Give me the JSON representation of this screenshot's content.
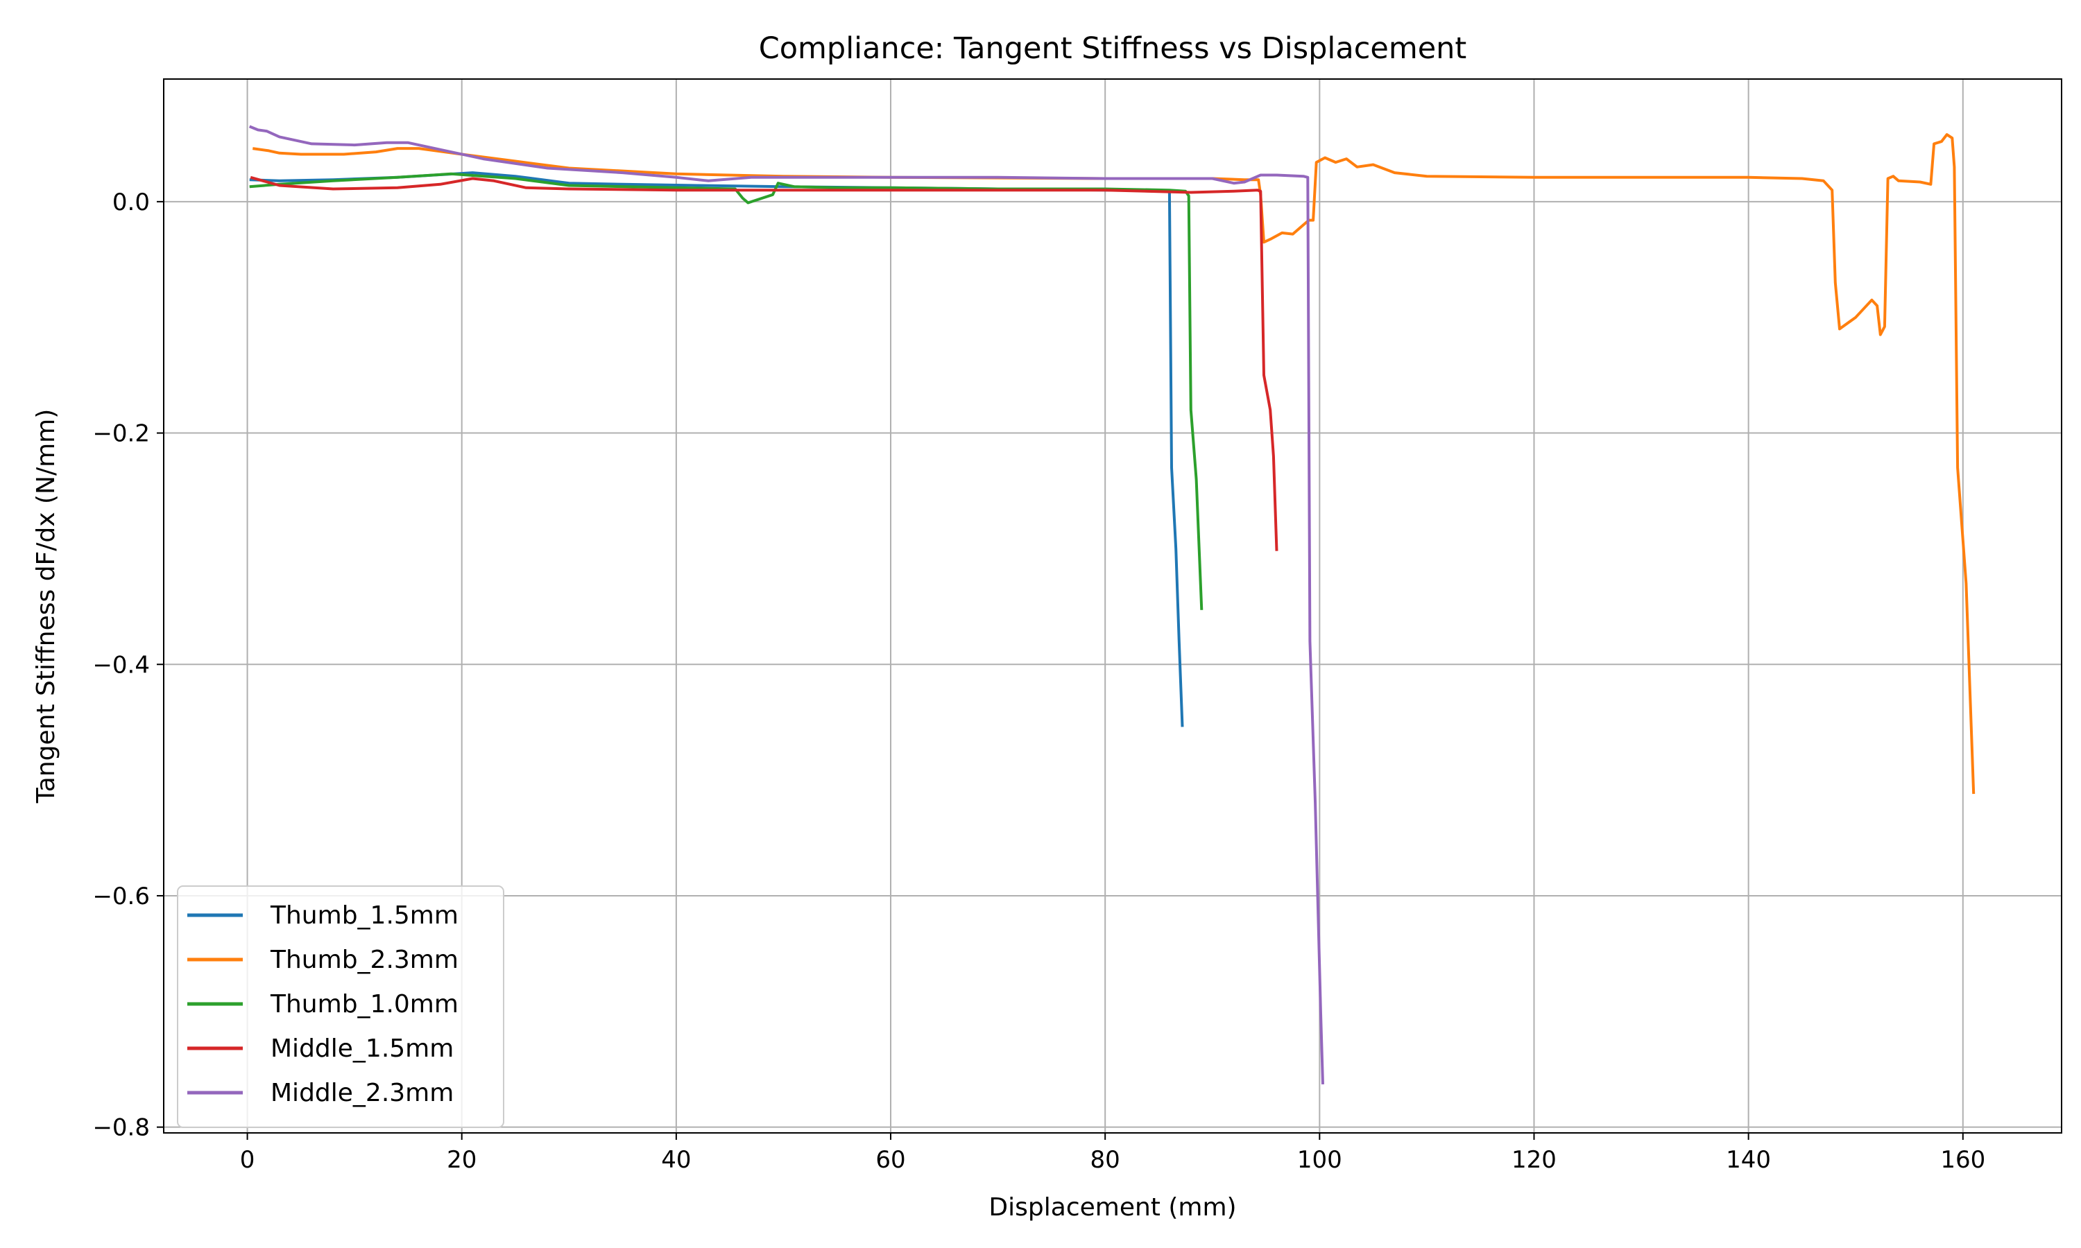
{
  "chart_data": {
    "type": "line",
    "title": "Compliance: Tangent Stiffness vs Displacement",
    "xlabel": "Displacement (mm)",
    "ylabel": "Tangent Stiffness dF/dx (N/mm)",
    "xlim": [
      -7.8,
      169.2
    ],
    "ylim": [
      -0.805,
      0.106
    ],
    "xticks": [
      0,
      20,
      40,
      60,
      80,
      100,
      120,
      140,
      160
    ],
    "xtick_labels": [
      "0",
      "20",
      "40",
      "60",
      "80",
      "100",
      "120",
      "140",
      "160"
    ],
    "yticks": [
      0.0,
      -0.2,
      -0.4,
      -0.6,
      -0.8
    ],
    "ytick_labels": [
      "0.0",
      "−0.2",
      "−0.4",
      "−0.6",
      "−0.8"
    ],
    "grid": true,
    "legend_position": "lower-left",
    "series": [
      {
        "name": "Thumb_1.5mm",
        "color": "#1f77b4",
        "points": [
          [
            0.2,
            0.019
          ],
          [
            3,
            0.018
          ],
          [
            8,
            0.019
          ],
          [
            14,
            0.021
          ],
          [
            21,
            0.025
          ],
          [
            25,
            0.022
          ],
          [
            30,
            0.016
          ],
          [
            35,
            0.015
          ],
          [
            42,
            0.014
          ],
          [
            50,
            0.013
          ],
          [
            60,
            0.012
          ],
          [
            70,
            0.011
          ],
          [
            80,
            0.01
          ],
          [
            85,
            0.01
          ],
          [
            86,
            0.009
          ],
          [
            86.2,
            -0.23
          ],
          [
            86.6,
            -0.3
          ],
          [
            86.9,
            -0.38
          ],
          [
            87.2,
            -0.454
          ]
        ]
      },
      {
        "name": "Thumb_2.3mm",
        "color": "#ff7f0e",
        "points": [
          [
            0.5,
            0.046
          ],
          [
            2,
            0.044
          ],
          [
            3,
            0.042
          ],
          [
            5,
            0.041
          ],
          [
            9,
            0.041
          ],
          [
            12,
            0.043
          ],
          [
            14,
            0.046
          ],
          [
            16,
            0.046
          ],
          [
            20,
            0.041
          ],
          [
            25,
            0.035
          ],
          [
            30,
            0.029
          ],
          [
            40,
            0.024
          ],
          [
            50,
            0.022
          ],
          [
            60,
            0.021
          ],
          [
            80,
            0.02
          ],
          [
            90,
            0.02
          ],
          [
            93,
            0.019
          ],
          [
            94.3,
            0.019
          ],
          [
            94.5,
            0.006
          ],
          [
            94.8,
            -0.035
          ],
          [
            95.5,
            -0.032
          ],
          [
            96.5,
            -0.027
          ],
          [
            97.5,
            -0.028
          ],
          [
            98.5,
            -0.02
          ],
          [
            99,
            -0.016
          ],
          [
            99.4,
            -0.016
          ],
          [
            99.7,
            0.034
          ],
          [
            100.5,
            0.038
          ],
          [
            101.5,
            0.034
          ],
          [
            102.5,
            0.037
          ],
          [
            103.5,
            0.03
          ],
          [
            105,
            0.032
          ],
          [
            107,
            0.025
          ],
          [
            110,
            0.022
          ],
          [
            120,
            0.021
          ],
          [
            130,
            0.021
          ],
          [
            140,
            0.021
          ],
          [
            145,
            0.02
          ],
          [
            147,
            0.018
          ],
          [
            147.8,
            0.01
          ],
          [
            148.1,
            -0.07
          ],
          [
            148.5,
            -0.11
          ],
          [
            150,
            -0.1
          ],
          [
            151.5,
            -0.085
          ],
          [
            152,
            -0.09
          ],
          [
            152.3,
            -0.115
          ],
          [
            152.7,
            -0.108
          ],
          [
            153,
            0.02
          ],
          [
            153.5,
            0.022
          ],
          [
            154,
            0.018
          ],
          [
            156,
            0.017
          ],
          [
            157,
            0.015
          ],
          [
            157.3,
            0.05
          ],
          [
            158,
            0.052
          ],
          [
            158.5,
            0.058
          ],
          [
            159,
            0.055
          ],
          [
            159.2,
            0.03
          ],
          [
            159.5,
            -0.23
          ],
          [
            160.3,
            -0.33
          ],
          [
            161,
            -0.512
          ]
        ]
      },
      {
        "name": "Thumb_1.0mm",
        "color": "#2ca02c",
        "points": [
          [
            0.2,
            0.013
          ],
          [
            3,
            0.015
          ],
          [
            8,
            0.018
          ],
          [
            14,
            0.021
          ],
          [
            19,
            0.024
          ],
          [
            25,
            0.02
          ],
          [
            30,
            0.014
          ],
          [
            40,
            0.012
          ],
          [
            45.5,
            0.011
          ],
          [
            46.2,
            0.003
          ],
          [
            46.7,
            -0.001
          ],
          [
            48,
            0.003
          ],
          [
            49,
            0.006
          ],
          [
            49.5,
            0.016
          ],
          [
            51,
            0.013
          ],
          [
            55,
            0.012
          ],
          [
            60,
            0.012
          ],
          [
            70,
            0.011
          ],
          [
            80,
            0.011
          ],
          [
            86,
            0.01
          ],
          [
            87.5,
            0.009
          ],
          [
            87.8,
            0.005
          ],
          [
            88,
            -0.18
          ],
          [
            88.5,
            -0.24
          ],
          [
            89,
            -0.353
          ]
        ]
      },
      {
        "name": "Middle_1.5mm",
        "color": "#d62728",
        "points": [
          [
            0.3,
            0.021
          ],
          [
            3,
            0.014
          ],
          [
            8,
            0.011
          ],
          [
            14,
            0.012
          ],
          [
            18,
            0.015
          ],
          [
            21,
            0.02
          ],
          [
            23,
            0.018
          ],
          [
            26,
            0.012
          ],
          [
            30,
            0.011
          ],
          [
            40,
            0.01
          ],
          [
            60,
            0.01
          ],
          [
            70,
            0.01
          ],
          [
            80,
            0.01
          ],
          [
            88,
            0.008
          ],
          [
            92,
            0.009
          ],
          [
            94.2,
            0.01
          ],
          [
            94.5,
            0.009
          ],
          [
            94.8,
            -0.15
          ],
          [
            95.4,
            -0.18
          ],
          [
            95.7,
            -0.22
          ],
          [
            96,
            -0.302
          ]
        ]
      },
      {
        "name": "Middle_2.3mm",
        "color": "#9467bd",
        "points": [
          [
            0.2,
            0.065
          ],
          [
            1,
            0.062
          ],
          [
            1.8,
            0.061
          ],
          [
            3,
            0.056
          ],
          [
            6,
            0.05
          ],
          [
            10,
            0.049
          ],
          [
            13,
            0.051
          ],
          [
            15,
            0.051
          ],
          [
            18,
            0.045
          ],
          [
            22,
            0.037
          ],
          [
            28,
            0.029
          ],
          [
            35,
            0.025
          ],
          [
            40,
            0.021
          ],
          [
            43,
            0.018
          ],
          [
            47,
            0.021
          ],
          [
            55,
            0.021
          ],
          [
            70,
            0.021
          ],
          [
            80,
            0.02
          ],
          [
            88,
            0.02
          ],
          [
            90,
            0.02
          ],
          [
            92,
            0.016
          ],
          [
            93,
            0.017
          ],
          [
            94.5,
            0.023
          ],
          [
            96,
            0.023
          ],
          [
            98.5,
            0.022
          ],
          [
            98.9,
            0.021
          ],
          [
            99.1,
            -0.38
          ],
          [
            99.6,
            -0.52
          ],
          [
            100.1,
            -0.7
          ],
          [
            100.3,
            -0.763
          ]
        ]
      }
    ]
  }
}
